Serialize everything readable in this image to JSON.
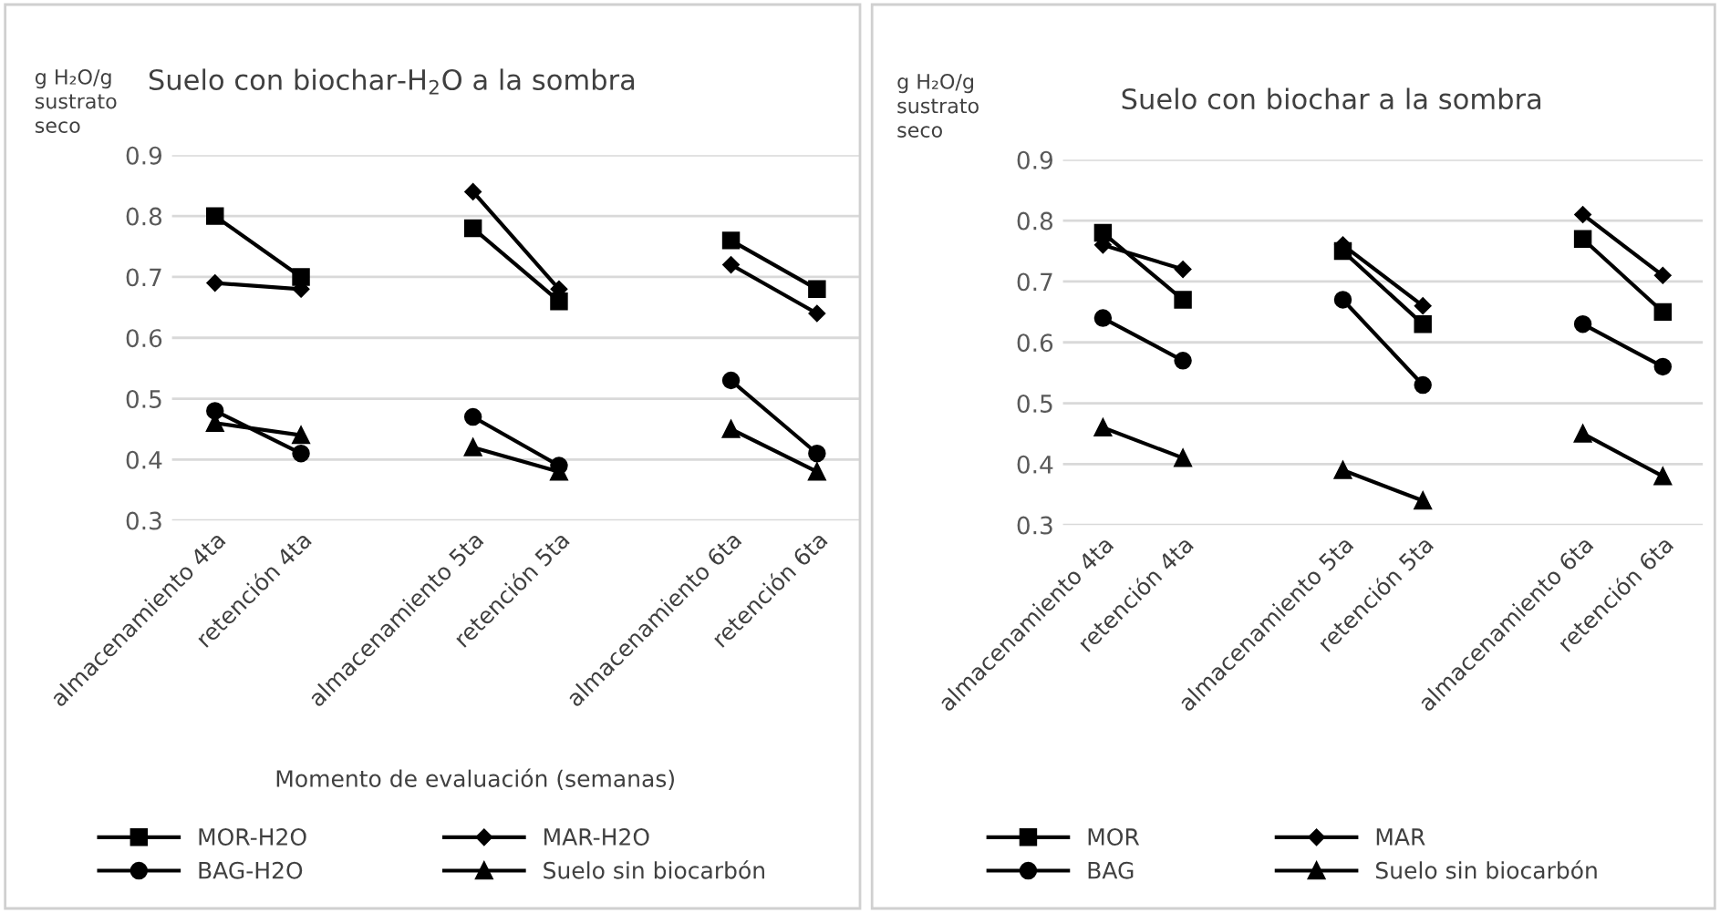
{
  "chart_data": [
    {
      "type": "line",
      "title": "Suelo con biochar-H$_{2}$O a la sombra",
      "ylabel": "g H₂O/g\nsustrato\nseco",
      "xlabel": "Momento de evaluación (semanas)",
      "categories": [
        "almacenamiento 4ta",
        "retención 4ta",
        null,
        "almacenamiento 5ta",
        "retención 5ta",
        null,
        "almacenamiento 6ta",
        "retención 6ta"
      ],
      "series": [
        {
          "name": "MOR-H2O",
          "color": "#000000",
          "marker": "square",
          "values": [
            0.8,
            0.7,
            null,
            0.78,
            0.66,
            null,
            0.76,
            0.68
          ]
        },
        {
          "name": "MAR-H2O",
          "color": "#000000",
          "marker": "diamond",
          "values": [
            0.69,
            0.68,
            null,
            0.84,
            0.68,
            null,
            0.72,
            0.64
          ]
        },
        {
          "name": "BAG-H2O",
          "color": "#000000",
          "marker": "circle",
          "values": [
            0.48,
            0.41,
            null,
            0.47,
            0.39,
            null,
            0.53,
            0.41
          ]
        },
        {
          "name": "Suelo sin biocarbón",
          "color": "#000000",
          "marker": "triangle",
          "values": [
            0.46,
            0.44,
            null,
            0.42,
            0.38,
            null,
            0.45,
            0.38
          ]
        }
      ],
      "ylim": [
        0.3,
        0.9
      ],
      "yticks": [
        0.3,
        0.4,
        0.5,
        0.6,
        0.7,
        0.8,
        0.9
      ],
      "grid": "y",
      "legend": "bottom",
      "line_style": "solid"
    },
    {
      "type": "line",
      "title": "Suelo con biochar a la sombra",
      "ylabel": "g H₂O/g\nsustrato\nseco",
      "categories": [
        "almacenamiento 4ta",
        "retención 4ta",
        null,
        "almacenamiento 5ta",
        "retención 5ta",
        null,
        "almacenamiento 6ta",
        "retención 6ta"
      ],
      "series": [
        {
          "name": "MOR",
          "color": "#000000",
          "marker": "square",
          "values": [
            0.78,
            0.67,
            null,
            0.75,
            0.63,
            null,
            0.77,
            0.65
          ]
        },
        {
          "name": "MAR",
          "color": "#000000",
          "marker": "diamond",
          "values": [
            0.76,
            0.72,
            null,
            0.76,
            0.66,
            null,
            0.81,
            0.71
          ]
        },
        {
          "name": "BAG",
          "color": "#000000",
          "marker": "circle",
          "values": [
            0.64,
            0.57,
            null,
            0.67,
            0.53,
            null,
            0.63,
            0.56
          ]
        },
        {
          "name": "Suelo sin biocarbón",
          "color": "#000000",
          "marker": "triangle",
          "values": [
            0.46,
            0.41,
            null,
            0.39,
            0.34,
            null,
            0.45,
            0.38
          ]
        }
      ],
      "ylim": [
        0.3,
        0.9
      ],
      "yticks": [
        0.3,
        0.4,
        0.5,
        0.6,
        0.7,
        0.8,
        0.9
      ],
      "grid": "y",
      "legend": "bottom",
      "line_style": "solid"
    }
  ]
}
